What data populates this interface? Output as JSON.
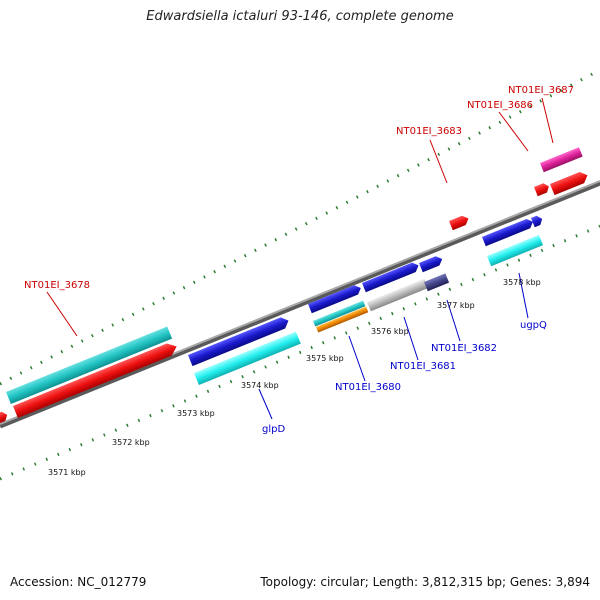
{
  "title": "Edwardsiella ictaluri 93-146, complete genome",
  "footer": {
    "accession": "Accession: NC_012779",
    "summary": "Topology: circular; Length: 3,812,315 bp; Genes: 3,894"
  },
  "scale_labels": [
    "3571 kbp",
    "3572 kbp",
    "3573 kbp",
    "3574 kbp",
    "3575 kbp",
    "3576 kbp",
    "3577 kbp",
    "3578 kbp"
  ],
  "gene_labels": {
    "top": [
      "NT01EI_3678",
      "NT01EI_3683",
      "NT01EI_3686",
      "NT01EI_3687"
    ],
    "bottom": [
      "glpD",
      "NT01EI_3680",
      "NT01EI_3681",
      "NT01EI_3682",
      "ugpQ"
    ]
  },
  "colors": {
    "plus_strand_label": "#cc0000",
    "minus_strand_label": "#0000cc",
    "backbone": "#808080",
    "tick": "#2e7d32",
    "cds_red": "#ee1111",
    "cds_blue": "#1a1acc",
    "cds_cyan": "#22cccc",
    "cds_magenta": "#dd2299",
    "cds_gray": "#bbbbbb",
    "cds_orange": "#ee8800",
    "cds_navy": "#444488"
  }
}
